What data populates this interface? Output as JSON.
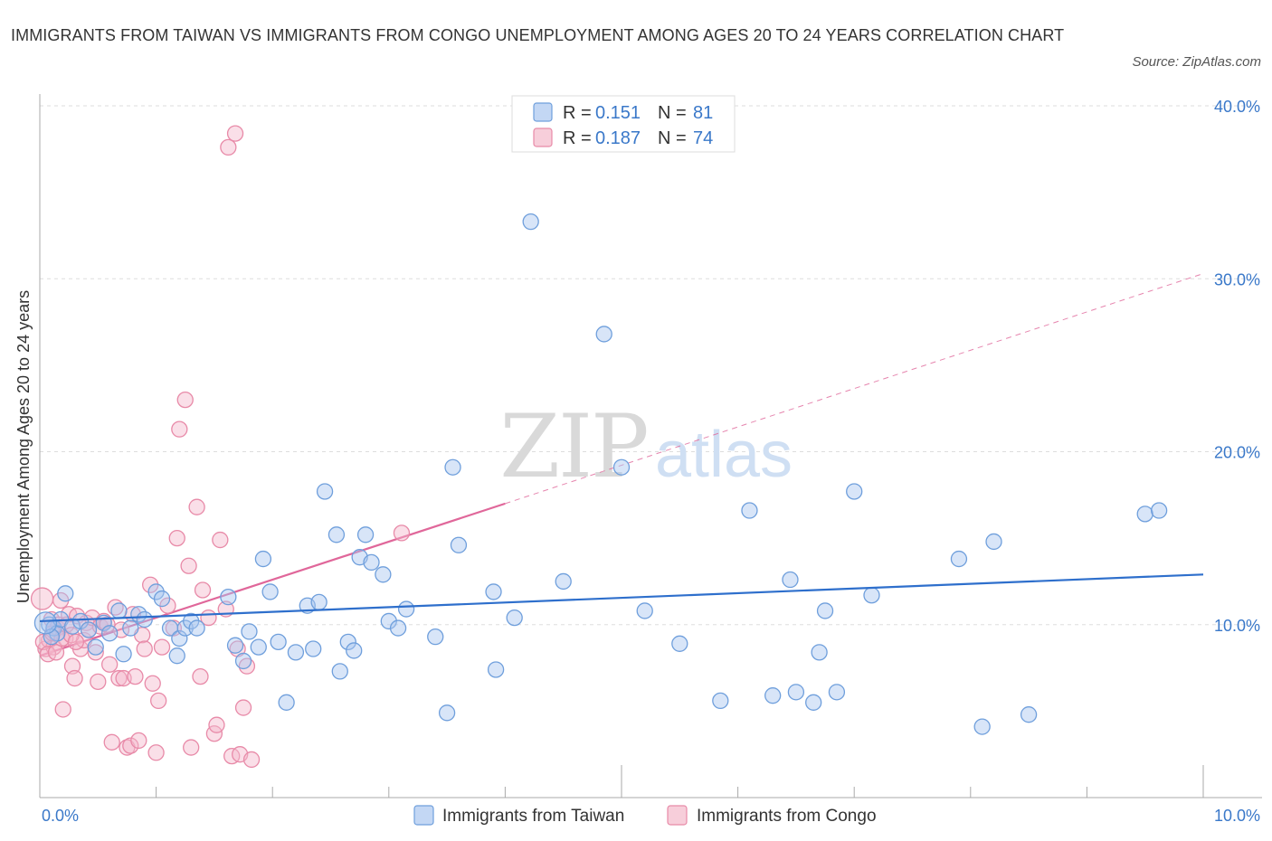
{
  "title": "IMMIGRANTS FROM TAIWAN VS IMMIGRANTS FROM CONGO UNEMPLOYMENT AMONG AGES 20 TO 24 YEARS CORRELATION CHART",
  "source": "Source: ZipAtlas.com",
  "watermark": {
    "zip": "ZIP",
    "atlas": "atlas"
  },
  "colors": {
    "taiwan_fill": "#a9c6ef",
    "taiwan_stroke": "#6f9fdc",
    "taiwan_line": "#2e6fcc",
    "congo_fill": "#f4b9cb",
    "congo_stroke": "#e88aa8",
    "congo_line": "#e0679a",
    "tick_text": "#3a78c9",
    "grid": "#dddddd"
  },
  "legend": {
    "r_label": "R =",
    "n_label": "N =",
    "rows": [
      {
        "series": "taiwan",
        "r": "0.151",
        "n": "81"
      },
      {
        "series": "congo",
        "r": "0.187",
        "n": "74"
      }
    ]
  },
  "chart_data": {
    "type": "scatter",
    "title": "IMMIGRANTS FROM TAIWAN VS IMMIGRANTS FROM CONGO UNEMPLOYMENT AMONG AGES 20 TO 24 YEARS CORRELATION CHART",
    "xlabel": "",
    "ylabel": "Unemployment Among Ages 20 to 24 years",
    "xlim": [
      0,
      10
    ],
    "ylim": [
      0,
      40
    ],
    "x_tick_labels": [
      "0.0%",
      "10.0%"
    ],
    "y_ticks": [
      10,
      20,
      30,
      40
    ],
    "y_tick_labels": [
      "10.0%",
      "20.0%",
      "30.0%",
      "40.0%"
    ],
    "grid": true,
    "legend_placement": "top-center",
    "series": [
      {
        "name": "Immigrants from Taiwan",
        "key": "taiwan",
        "trend": {
          "x": [
            0.0,
            10.0
          ],
          "y": [
            10.2,
            12.9
          ],
          "dashed_to": null
        },
        "points": [
          [
            0.08,
            10.0
          ],
          [
            0.12,
            9.8
          ],
          [
            0.15,
            9.5
          ],
          [
            0.18,
            10.3
          ],
          [
            0.22,
            11.8
          ],
          [
            0.28,
            9.9
          ],
          [
            0.35,
            10.2
          ],
          [
            0.42,
            9.7
          ],
          [
            0.48,
            8.7
          ],
          [
            0.55,
            10.1
          ],
          [
            0.6,
            9.5
          ],
          [
            0.68,
            10.8
          ],
          [
            0.72,
            8.3
          ],
          [
            0.78,
            9.8
          ],
          [
            0.85,
            10.6
          ],
          [
            0.9,
            10.3
          ],
          [
            1.0,
            11.9
          ],
          [
            1.05,
            11.5
          ],
          [
            1.12,
            9.8
          ],
          [
            1.18,
            8.2
          ],
          [
            1.2,
            9.2
          ],
          [
            1.25,
            9.8
          ],
          [
            1.3,
            10.2
          ],
          [
            1.35,
            9.8
          ],
          [
            1.62,
            11.6
          ],
          [
            1.68,
            8.8
          ],
          [
            1.75,
            7.9
          ],
          [
            1.8,
            9.6
          ],
          [
            1.88,
            8.7
          ],
          [
            1.92,
            13.8
          ],
          [
            1.98,
            11.9
          ],
          [
            2.05,
            9.0
          ],
          [
            2.12,
            5.5
          ],
          [
            2.2,
            8.4
          ],
          [
            2.3,
            11.1
          ],
          [
            2.35,
            8.6
          ],
          [
            2.4,
            11.3
          ],
          [
            2.45,
            17.7
          ],
          [
            2.58,
            7.3
          ],
          [
            2.55,
            15.2
          ],
          [
            2.65,
            9.0
          ],
          [
            2.7,
            8.5
          ],
          [
            2.75,
            13.9
          ],
          [
            2.8,
            15.2
          ],
          [
            2.85,
            13.6
          ],
          [
            2.95,
            12.9
          ],
          [
            3.0,
            10.2
          ],
          [
            3.08,
            9.8
          ],
          [
            3.15,
            10.9
          ],
          [
            3.4,
            9.3
          ],
          [
            3.5,
            4.9
          ],
          [
            3.55,
            19.1
          ],
          [
            3.6,
            14.6
          ],
          [
            3.9,
            11.9
          ],
          [
            3.92,
            7.4
          ],
          [
            4.08,
            10.4
          ],
          [
            4.22,
            33.3
          ],
          [
            4.5,
            12.5
          ],
          [
            4.85,
            26.8
          ],
          [
            5.0,
            19.1
          ],
          [
            5.2,
            10.8
          ],
          [
            5.5,
            8.9
          ],
          [
            5.85,
            5.6
          ],
          [
            6.1,
            16.6
          ],
          [
            6.3,
            5.9
          ],
          [
            6.45,
            12.6
          ],
          [
            6.5,
            6.1
          ],
          [
            6.65,
            5.5
          ],
          [
            6.7,
            8.4
          ],
          [
            6.75,
            10.8
          ],
          [
            6.85,
            6.1
          ],
          [
            7.0,
            17.7
          ],
          [
            7.15,
            11.7
          ],
          [
            7.9,
            13.8
          ],
          [
            8.1,
            4.1
          ],
          [
            8.2,
            14.8
          ],
          [
            8.5,
            4.8
          ],
          [
            9.5,
            16.4
          ],
          [
            9.62,
            16.6
          ],
          [
            0.1,
            9.3
          ],
          [
            0.05,
            10.1
          ]
        ]
      },
      {
        "name": "Immigrants from Congo",
        "key": "congo",
        "trend": {
          "x": [
            0.0,
            4.0
          ],
          "y": [
            8.2,
            17.0
          ],
          "dashed_to": {
            "x": 10.0,
            "y": 30.3
          }
        },
        "points": [
          [
            0.02,
            11.5
          ],
          [
            0.05,
            8.6
          ],
          [
            0.08,
            9.1
          ],
          [
            0.1,
            10.3
          ],
          [
            0.12,
            8.7
          ],
          [
            0.15,
            9.8
          ],
          [
            0.18,
            11.4
          ],
          [
            0.2,
            5.1
          ],
          [
            0.22,
            9.2
          ],
          [
            0.25,
            10.6
          ],
          [
            0.28,
            7.6
          ],
          [
            0.3,
            6.9
          ],
          [
            0.32,
            10.5
          ],
          [
            0.35,
            8.6
          ],
          [
            0.38,
            9.1
          ],
          [
            0.4,
            10.1
          ],
          [
            0.42,
            9.7
          ],
          [
            0.45,
            10.4
          ],
          [
            0.48,
            8.4
          ],
          [
            0.5,
            6.7
          ],
          [
            0.52,
            9.9
          ],
          [
            0.55,
            10.2
          ],
          [
            0.58,
            10.0
          ],
          [
            0.6,
            7.7
          ],
          [
            0.62,
            3.2
          ],
          [
            0.65,
            11.0
          ],
          [
            0.68,
            6.9
          ],
          [
            0.7,
            9.7
          ],
          [
            0.72,
            6.9
          ],
          [
            0.75,
            2.9
          ],
          [
            0.78,
            3.0
          ],
          [
            0.8,
            10.6
          ],
          [
            0.82,
            7.0
          ],
          [
            0.85,
            3.3
          ],
          [
            0.88,
            9.4
          ],
          [
            0.9,
            8.6
          ],
          [
            0.95,
            12.3
          ],
          [
            0.97,
            6.6
          ],
          [
            1.0,
            2.6
          ],
          [
            1.02,
            5.6
          ],
          [
            1.05,
            8.7
          ],
          [
            1.1,
            11.1
          ],
          [
            1.15,
            9.8
          ],
          [
            1.18,
            15.0
          ],
          [
            1.2,
            21.3
          ],
          [
            1.25,
            23.0
          ],
          [
            1.28,
            13.4
          ],
          [
            1.3,
            2.9
          ],
          [
            1.35,
            16.8
          ],
          [
            1.38,
            7.0
          ],
          [
            1.4,
            12.0
          ],
          [
            1.45,
            10.4
          ],
          [
            1.5,
            3.7
          ],
          [
            1.52,
            4.2
          ],
          [
            1.55,
            14.9
          ],
          [
            1.6,
            10.9
          ],
          [
            1.62,
            37.6
          ],
          [
            1.65,
            2.4
          ],
          [
            1.68,
            38.4
          ],
          [
            1.7,
            8.6
          ],
          [
            1.72,
            2.5
          ],
          [
            1.75,
            5.2
          ],
          [
            1.78,
            7.6
          ],
          [
            1.82,
            2.2
          ],
          [
            0.03,
            9.0
          ],
          [
            0.07,
            8.3
          ],
          [
            0.11,
            9.5
          ],
          [
            0.14,
            8.4
          ],
          [
            0.16,
            10.0
          ],
          [
            0.19,
            9.2
          ],
          [
            0.23,
            10.0
          ],
          [
            0.27,
            9.4
          ],
          [
            0.31,
            9.0
          ],
          [
            3.11,
            15.3
          ]
        ]
      }
    ]
  },
  "bottom_legend": [
    {
      "series": "taiwan",
      "label": "Immigrants from Taiwan"
    },
    {
      "series": "congo",
      "label": "Immigrants from Congo"
    }
  ]
}
